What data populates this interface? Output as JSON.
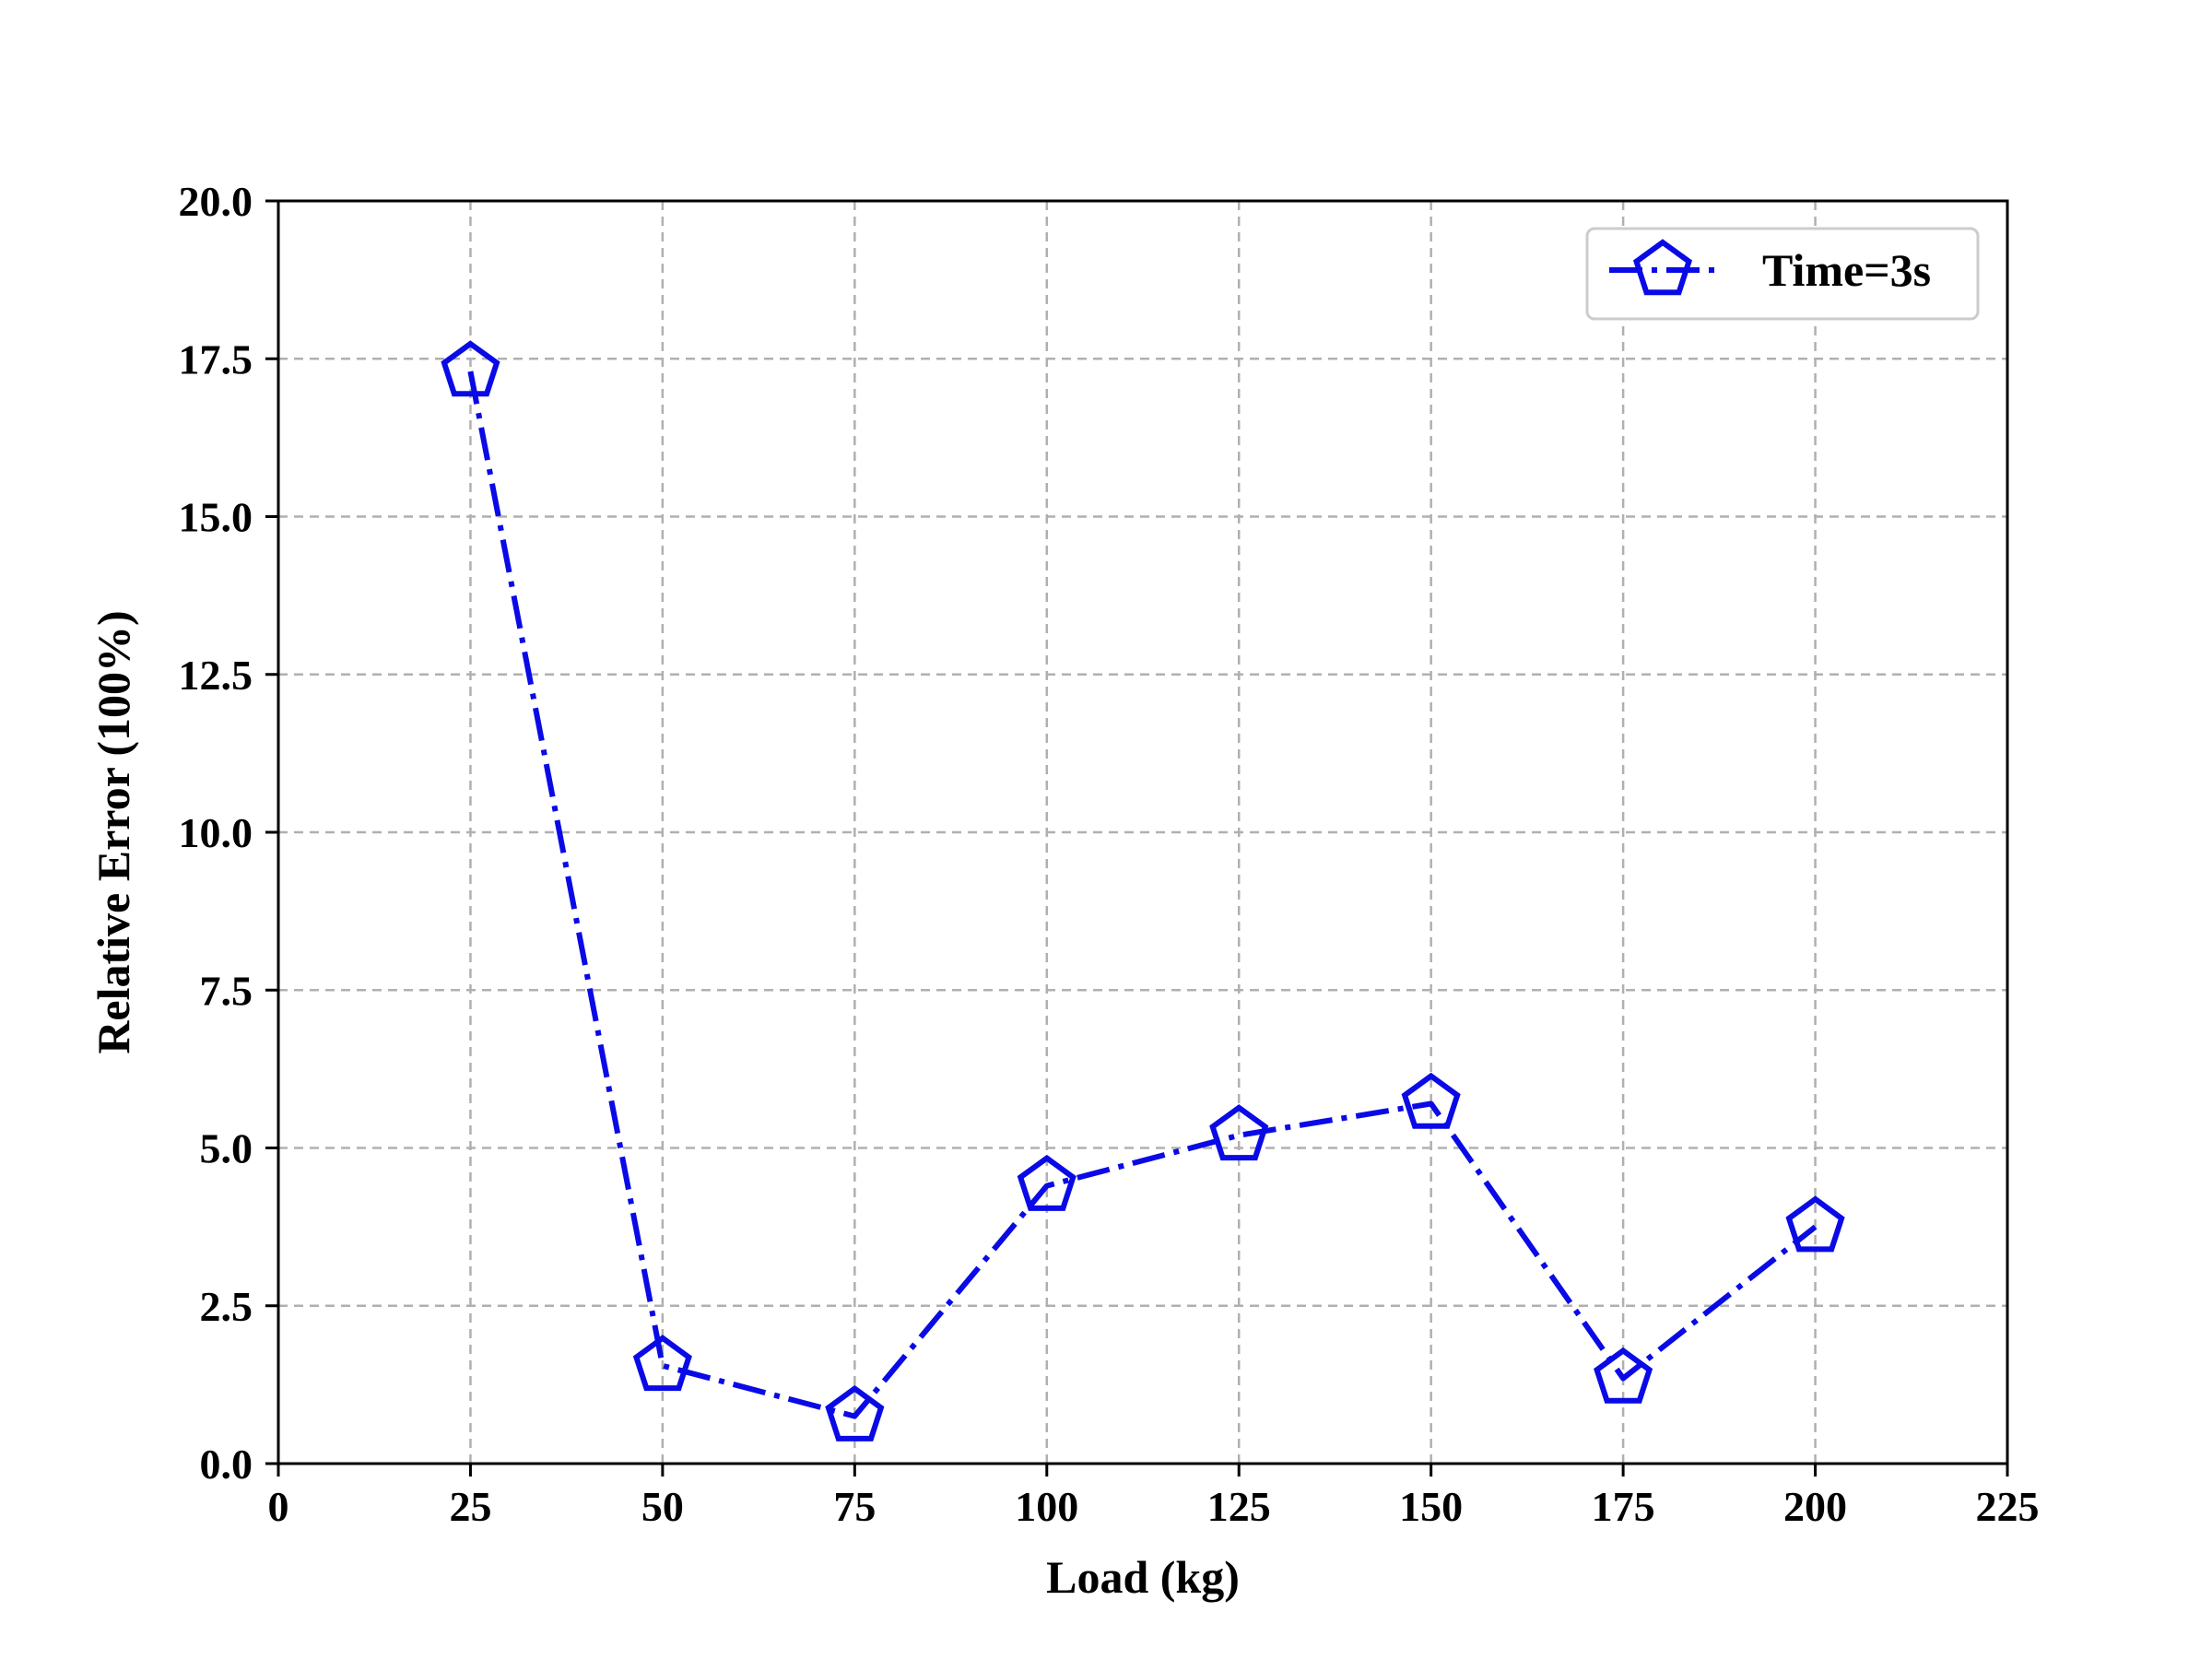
{
  "chart_data": {
    "type": "line",
    "xlabel": "Load (kg)",
    "ylabel": "Relative Error (100%)",
    "xlim": [
      0,
      225
    ],
    "ylim": [
      0,
      20
    ],
    "x_ticks": [
      "0",
      "25",
      "50",
      "75",
      "100",
      "125",
      "150",
      "175",
      "200",
      "225"
    ],
    "y_ticks": [
      "0.0",
      "2.5",
      "5.0",
      "7.5",
      "10.0",
      "12.5",
      "15.0",
      "17.5",
      "20.0"
    ],
    "grid": true,
    "legend_position": "top-right",
    "series": [
      {
        "name": "Time=3s",
        "color": "#0a0ae6",
        "marker": "pentagon",
        "line_style": "dash-dot",
        "x": [
          25,
          50,
          75,
          100,
          125,
          150,
          175,
          200
        ],
        "y": [
          17.3,
          1.55,
          0.75,
          4.4,
          5.2,
          5.7,
          1.35,
          3.75
        ]
      }
    ]
  }
}
